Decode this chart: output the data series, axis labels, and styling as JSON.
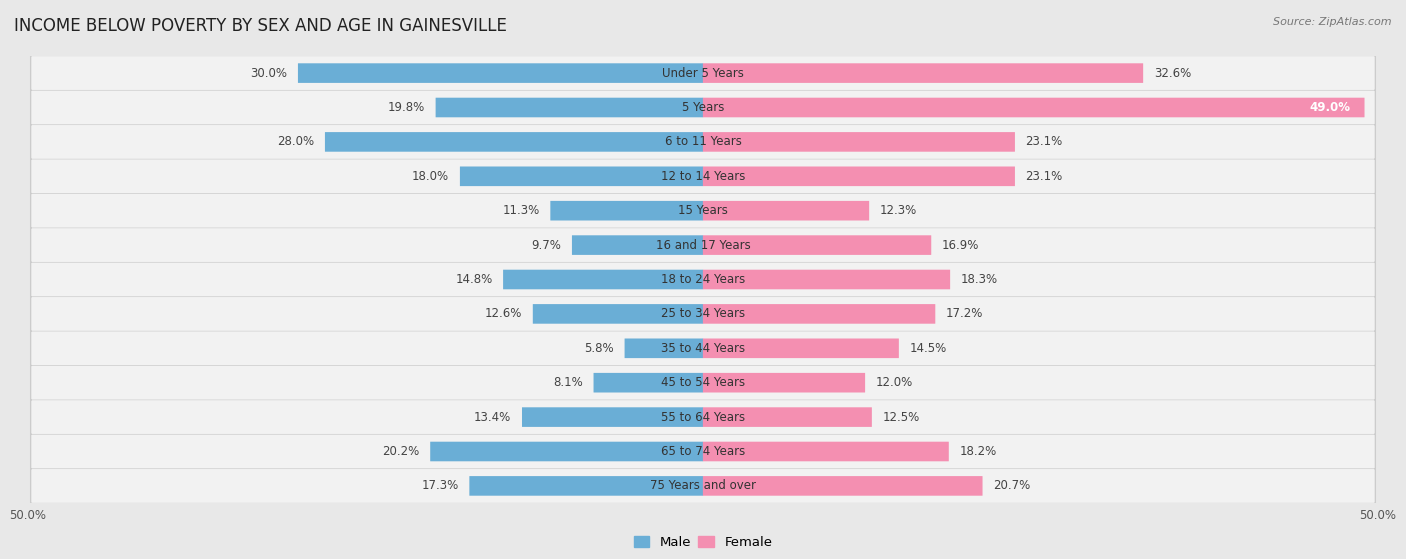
{
  "title": "INCOME BELOW POVERTY BY SEX AND AGE IN GAINESVILLE",
  "source": "Source: ZipAtlas.com",
  "categories": [
    "Under 5 Years",
    "5 Years",
    "6 to 11 Years",
    "12 to 14 Years",
    "15 Years",
    "16 and 17 Years",
    "18 to 24 Years",
    "25 to 34 Years",
    "35 to 44 Years",
    "45 to 54 Years",
    "55 to 64 Years",
    "65 to 74 Years",
    "75 Years and over"
  ],
  "male_values": [
    30.0,
    19.8,
    28.0,
    18.0,
    11.3,
    9.7,
    14.8,
    12.6,
    5.8,
    8.1,
    13.4,
    20.2,
    17.3
  ],
  "female_values": [
    32.6,
    49.0,
    23.1,
    23.1,
    12.3,
    16.9,
    18.3,
    17.2,
    14.5,
    12.0,
    12.5,
    18.2,
    20.7
  ],
  "male_color": "#6aaed6",
  "female_color": "#f48fb1",
  "male_label": "Male",
  "female_label": "Female",
  "xlim": 50.0,
  "bg_outer": "#e8e8e8",
  "row_bg_light": "#f7f7f7",
  "row_bg_shadow": "#d0d0d0",
  "title_fontsize": 12,
  "cat_fontsize": 8.5,
  "value_fontsize": 8.5,
  "legend_fontsize": 9.5,
  "source_fontsize": 8
}
